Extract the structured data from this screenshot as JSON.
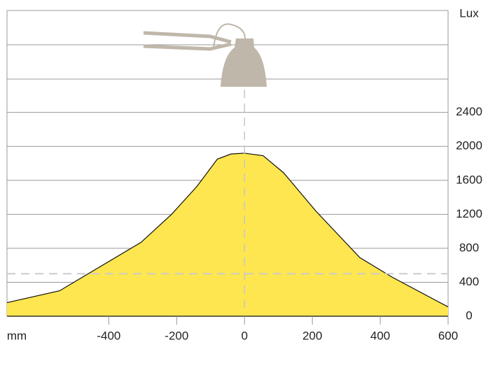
{
  "chart_data": {
    "type": "area",
    "x_label": "mm",
    "y_label": "Lux",
    "x": [
      -700,
      -545,
      -305,
      -215,
      -140,
      -80,
      -40,
      0,
      55,
      115,
      210,
      340,
      435,
      600
    ],
    "values": [
      160,
      300,
      870,
      1200,
      1530,
      1850,
      1910,
      1920,
      1890,
      1690,
      1240,
      690,
      460,
      110
    ],
    "color": "#fde64f",
    "xlim": [
      -700,
      600
    ],
    "xticks": [
      -400,
      -200,
      0,
      200,
      400,
      600
    ],
    "ylim": [
      0,
      3600
    ],
    "yticks": [
      0,
      400,
      800,
      1200,
      1600,
      2000,
      2400
    ],
    "reference_y": 500,
    "reference_x": 0,
    "grid": true
  }
}
